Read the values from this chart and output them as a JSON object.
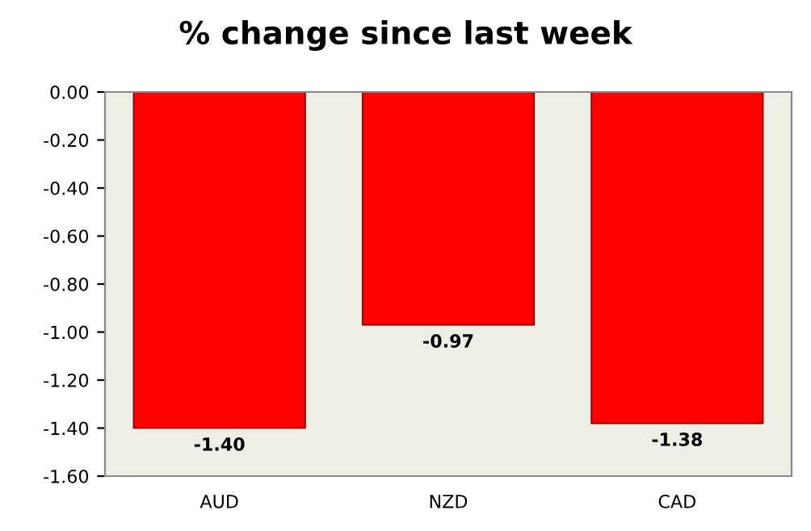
{
  "chart_data": {
    "type": "bar",
    "title": "% change since last week",
    "categories": [
      "AUD",
      "NZD",
      "CAD"
    ],
    "values": [
      -1.4,
      -0.97,
      -1.38
    ],
    "color": "#ff0000",
    "ylim": [
      -1.6,
      0
    ],
    "yticks": [
      {
        "value": -1.6,
        "label": "-1.60"
      },
      {
        "value": -1.4,
        "label": "-1.40"
      },
      {
        "value": -1.2,
        "label": "-1.20"
      },
      {
        "value": -1.0,
        "label": "-1.00"
      },
      {
        "value": -0.8,
        "label": "-0.80"
      },
      {
        "value": -0.6,
        "label": "-0.60"
      },
      {
        "value": -0.4,
        "label": "-0.40"
      },
      {
        "value": -0.2,
        "label": "-0.20"
      },
      {
        "value": 0,
        "label": "0.00"
      }
    ],
    "value_labels": [
      "-1.40",
      "-0.97",
      "-1.38"
    ],
    "grid": false,
    "legend": false
  }
}
